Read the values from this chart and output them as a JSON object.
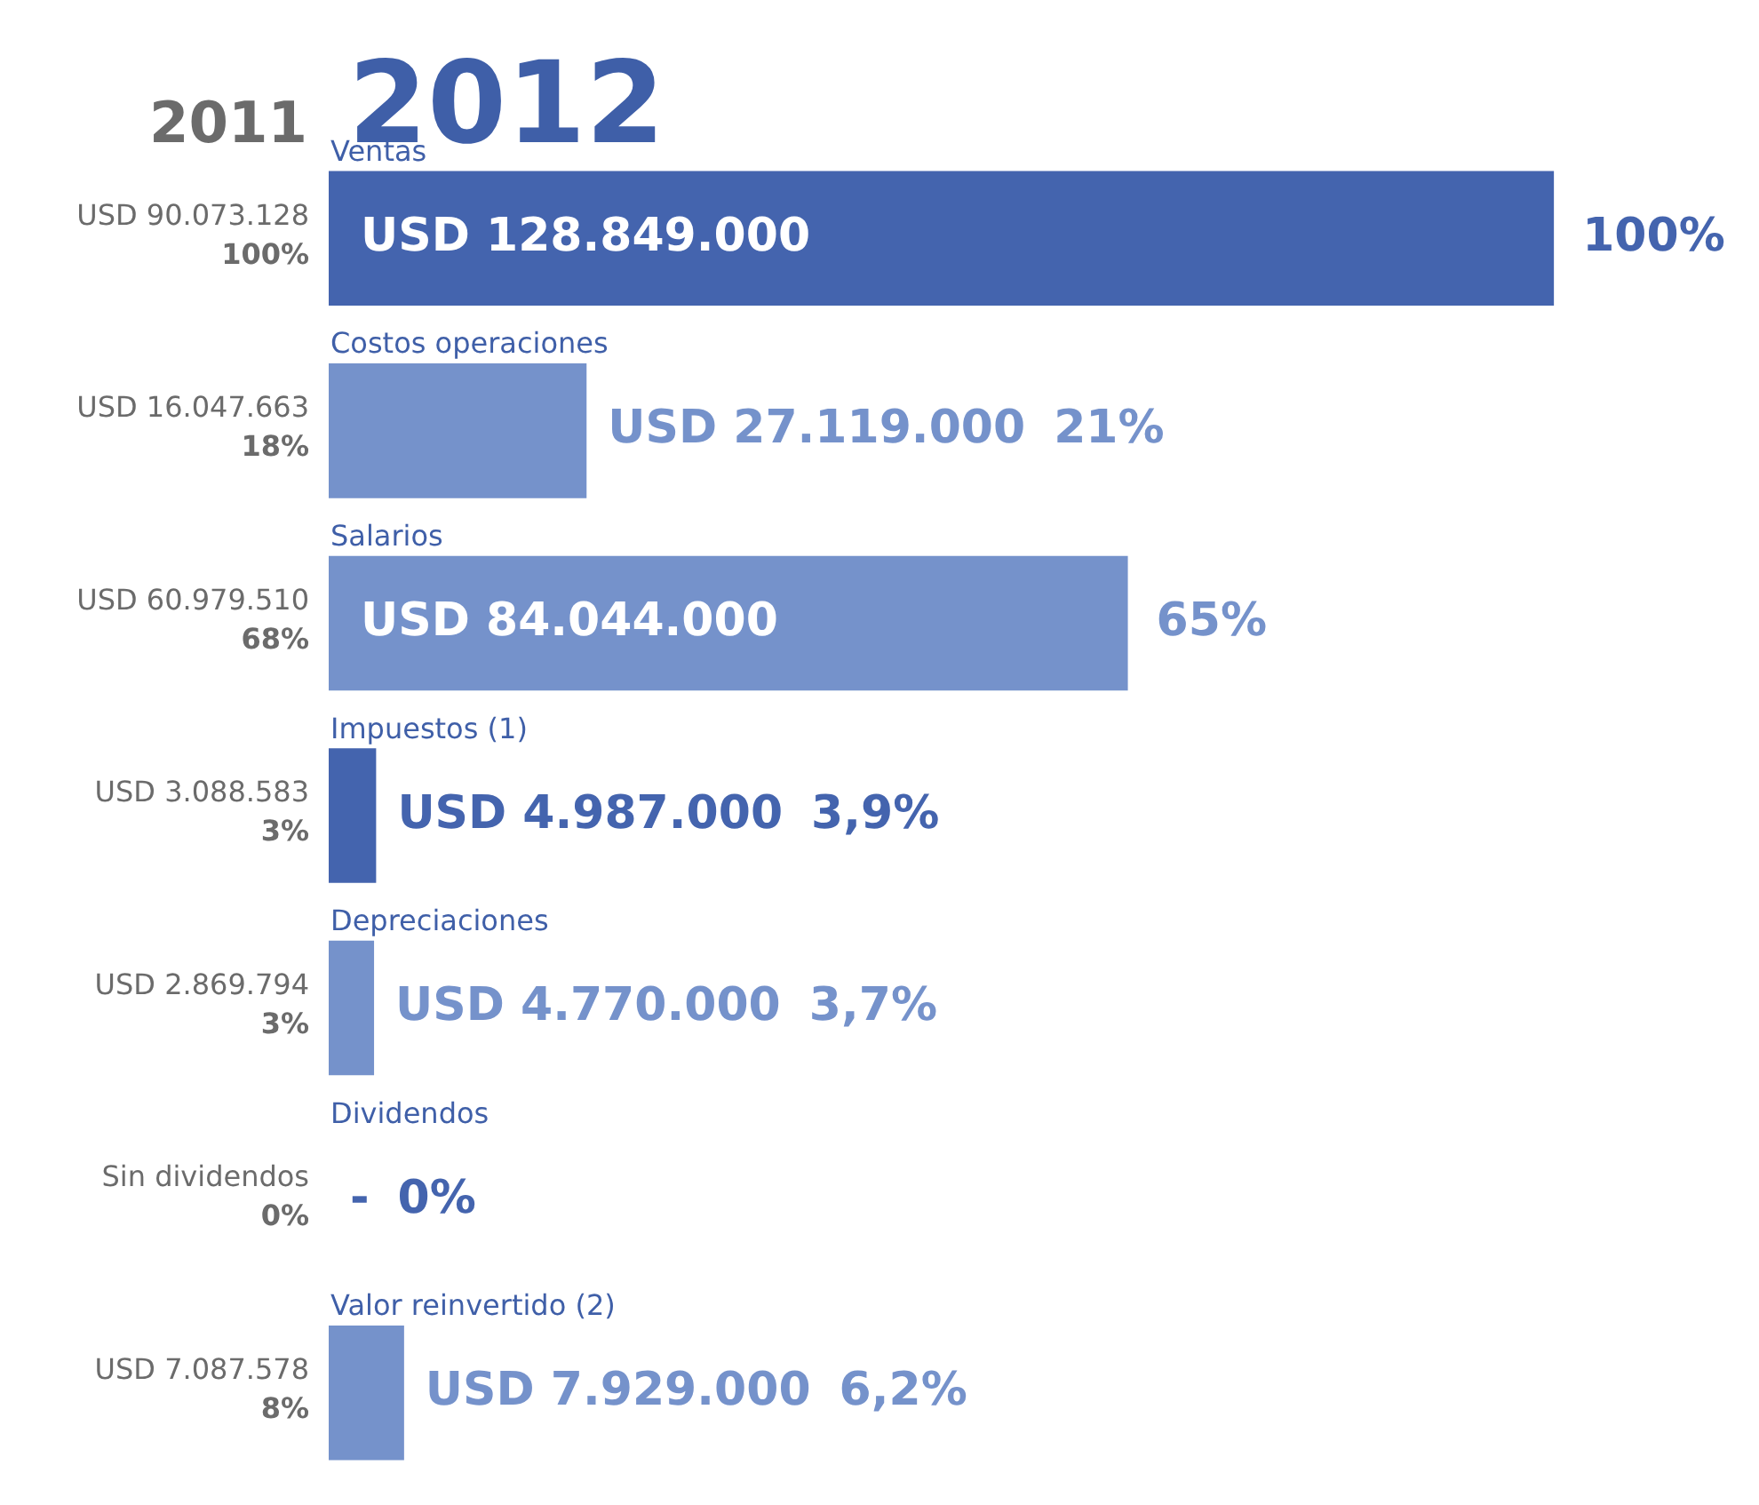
{
  "chart_data": {
    "type": "bar",
    "orientation": "horizontal",
    "title": "2012",
    "subtitle": "2011",
    "categories": [
      "Ventas",
      "Costos operaciones",
      "Salarios",
      "Impuestos (1)",
      "Depreciaciones",
      "Dividendos",
      "Valor reinvertido (2)"
    ],
    "values": [
      128849000,
      27119000,
      84044000,
      4987000,
      4770000,
      0,
      7929000
    ],
    "value_labels": [
      "USD 128.849.000",
      "USD 27.119.000",
      "USD 84.044.000",
      "USD 4.987.000",
      "USD 4.770.000",
      "-",
      "USD 7.929.000"
    ],
    "colors": [
      "#4464ae",
      "#7592cb",
      "#7592cb",
      "#4464ae",
      "#7592cb",
      "#4464ae",
      "#7592cb"
    ],
    "annotations": [
      "100%",
      "21%",
      "65%",
      "3,9%",
      "3,7%",
      "0%",
      "6,2%",
      "USD 90.073.128",
      "100%",
      "USD 16.047.663",
      "18%",
      "USD 60.979.510",
      "68%",
      "USD 3.088.583",
      "3%",
      "USD 2.869.794",
      "3%",
      "Sin dividendos",
      "0%",
      "USD 7.087.578",
      "8%"
    ]
  }
}
